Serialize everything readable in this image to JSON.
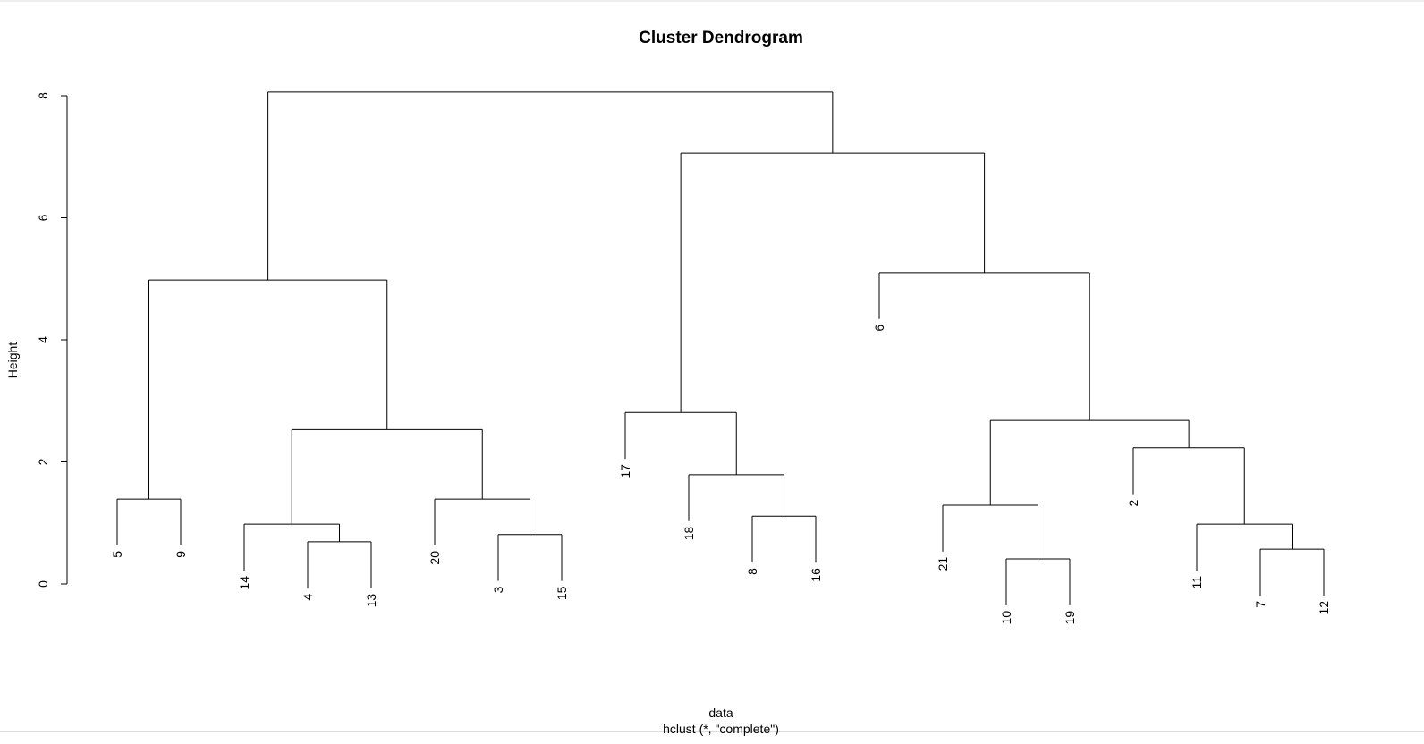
{
  "chart_data": {
    "type": "dendrogram",
    "title": "Cluster Dendrogram",
    "y_label": "Height",
    "x_label": "data",
    "subtitle": "hclust (*, \"complete\")",
    "ylim": [
      0,
      8.4
    ],
    "yticks": [
      0,
      2,
      4,
      6,
      8
    ],
    "color": "#000000",
    "tree": {
      "height": 8.06,
      "children": [
        {
          "height": 4.98,
          "children": [
            {
              "height": 1.39,
              "children": [
                {
                  "label": "5"
                },
                {
                  "label": "9"
                }
              ]
            },
            {
              "height": 2.53,
              "children": [
                {
                  "height": 0.98,
                  "children": [
                    {
                      "label": "14"
                    },
                    {
                      "height": 0.69,
                      "children": [
                        {
                          "label": "4"
                        },
                        {
                          "label": "13"
                        }
                      ]
                    }
                  ]
                },
                {
                  "height": 1.39,
                  "children": [
                    {
                      "label": "20"
                    },
                    {
                      "height": 0.81,
                      "children": [
                        {
                          "label": "3"
                        },
                        {
                          "label": "15"
                        }
                      ]
                    }
                  ]
                }
              ]
            }
          ]
        },
        {
          "height": 7.06,
          "children": [
            {
              "height": 2.81,
              "children": [
                {
                  "label": "17"
                },
                {
                  "height": 1.79,
                  "children": [
                    {
                      "label": "18"
                    },
                    {
                      "height": 1.11,
                      "children": [
                        {
                          "label": "8"
                        },
                        {
                          "label": "16"
                        }
                      ]
                    }
                  ]
                }
              ]
            },
            {
              "height": 5.1,
              "children": [
                {
                  "label": "6"
                },
                {
                  "height": 2.68,
                  "children": [
                    {
                      "height": 1.29,
                      "children": [
                        {
                          "label": "21"
                        },
                        {
                          "height": 0.41,
                          "children": [
                            {
                              "label": "10"
                            },
                            {
                              "label": "19"
                            }
                          ]
                        }
                      ]
                    },
                    {
                      "height": 2.23,
                      "children": [
                        {
                          "label": "2"
                        },
                        {
                          "height": 0.98,
                          "children": [
                            {
                              "label": "11"
                            },
                            {
                              "height": 0.57,
                              "children": [
                                {
                                  "label": "7"
                                },
                                {
                                  "label": "12"
                                }
                              ]
                            }
                          ]
                        }
                      ]
                    }
                  ]
                }
              ]
            }
          ]
        }
      ]
    }
  }
}
